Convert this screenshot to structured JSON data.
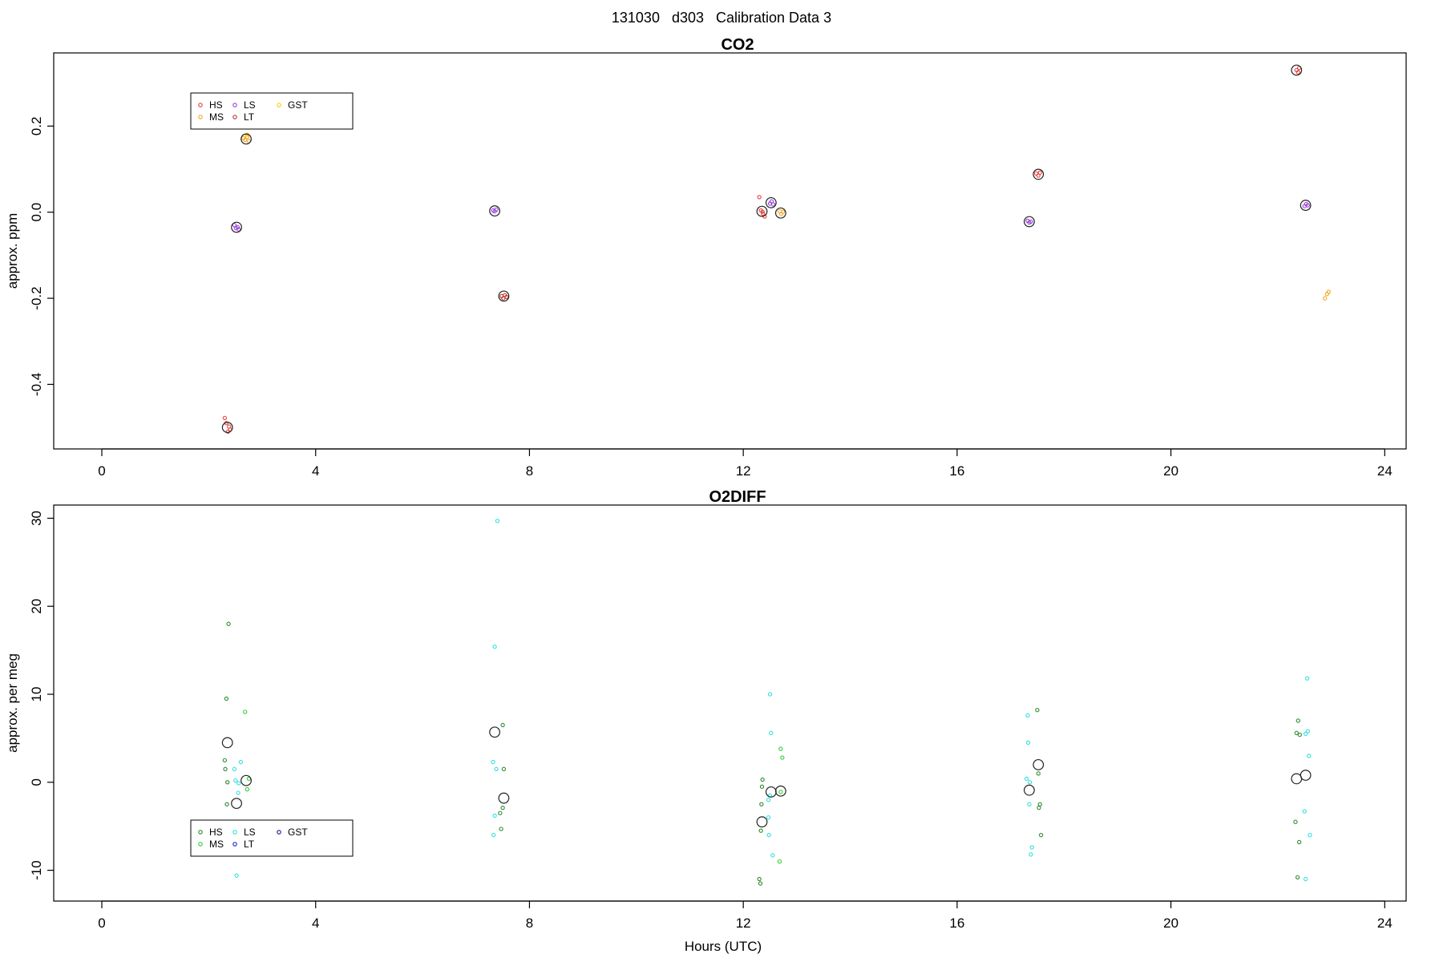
{
  "figure": {
    "title": "131030   d303   Calibration Data 3"
  },
  "chart_data": [
    {
      "type": "scatter",
      "title": "CO2",
      "xlabel": "",
      "ylabel": "approx. ppm",
      "xlim": [
        -0.9,
        24.4
      ],
      "ylim": [
        -0.55,
        0.37
      ],
      "xticks": [
        "0",
        "4",
        "8",
        "12",
        "16",
        "20",
        "24"
      ],
      "yticks": [
        "-0.4",
        "-0.2",
        "0.0",
        "0.2"
      ],
      "legend": {
        "position": "top-left",
        "entries": [
          "HS",
          "MS",
          "LS",
          "LT",
          "GST"
        ]
      },
      "colors": {
        "HS": "#e8413a",
        "MS": "#f5a623",
        "LS": "#9b3fe0",
        "LT": "#c0392b",
        "GST": "#f5d000",
        "mean": "#222222"
      },
      "means": [
        {
          "x": 2.35,
          "y": -0.5
        },
        {
          "x": 2.52,
          "y": -0.035
        },
        {
          "x": 2.7,
          "y": 0.17
        },
        {
          "x": 7.35,
          "y": 0.003
        },
        {
          "x": 7.52,
          "y": -0.195
        },
        {
          "x": 12.35,
          "y": 0.002
        },
        {
          "x": 12.52,
          "y": 0.022
        },
        {
          "x": 12.7,
          "y": -0.002
        },
        {
          "x": 17.35,
          "y": -0.022
        },
        {
          "x": 17.52,
          "y": 0.088
        },
        {
          "x": 22.35,
          "y": 0.33
        },
        {
          "x": 22.52,
          "y": 0.016
        }
      ],
      "series": [
        {
          "name": "HS",
          "points": [
            [
              2.3,
              -0.478
            ],
            [
              2.33,
              -0.49
            ],
            [
              2.36,
              -0.51
            ],
            [
              2.4,
              -0.505
            ],
            [
              2.38,
              -0.498
            ],
            [
              12.3,
              0.035
            ],
            [
              12.33,
              0.004
            ],
            [
              12.37,
              -0.004
            ],
            [
              12.4,
              -0.01
            ],
            [
              12.36,
              0.001
            ],
            [
              17.48,
              0.09
            ],
            [
              17.52,
              0.085
            ],
            [
              17.55,
              0.092
            ],
            [
              22.35,
              0.33
            ],
            [
              22.38,
              0.325
            ],
            [
              22.4,
              0.335
            ]
          ]
        },
        {
          "name": "MS",
          "points": [
            [
              2.65,
              0.172
            ],
            [
              2.68,
              0.168
            ],
            [
              2.72,
              0.175
            ],
            [
              2.75,
              0.165
            ],
            [
              12.68,
              0.002
            ],
            [
              12.71,
              -0.004
            ],
            [
              12.74,
              0.001
            ],
            [
              22.88,
              -0.2
            ],
            [
              22.92,
              -0.19
            ],
            [
              22.95,
              -0.185
            ]
          ]
        },
        {
          "name": "LS",
          "points": [
            [
              2.48,
              -0.03
            ],
            [
              2.51,
              -0.037
            ],
            [
              2.54,
              -0.035
            ],
            [
              2.56,
              -0.04
            ],
            [
              7.32,
              0.004
            ],
            [
              7.35,
              0.002
            ],
            [
              7.38,
              0.006
            ],
            [
              12.5,
              0.02
            ],
            [
              12.53,
              0.025
            ],
            [
              12.56,
              0.018
            ],
            [
              17.32,
              -0.02
            ],
            [
              17.35,
              -0.024
            ],
            [
              17.38,
              -0.022
            ],
            [
              22.5,
              0.014
            ],
            [
              22.53,
              0.019
            ],
            [
              22.56,
              0.016
            ]
          ]
        },
        {
          "name": "LT",
          "points": [
            [
              7.48,
              -0.195
            ],
            [
              7.51,
              -0.2
            ],
            [
              7.54,
              -0.193
            ],
            [
              7.57,
              -0.197
            ]
          ]
        },
        {
          "name": "GST",
          "points": [
            [
              2.72,
              0.18
            ]
          ]
        }
      ]
    },
    {
      "type": "scatter",
      "title": "O2DIFF",
      "xlabel": "Hours (UTC)",
      "ylabel": "approx. per meg",
      "xlim": [
        -0.9,
        24.4
      ],
      "ylim": [
        -13.5,
        31.5
      ],
      "xticks": [
        "0",
        "4",
        "8",
        "12",
        "16",
        "20",
        "24"
      ],
      "yticks": [
        "-10",
        "0",
        "10",
        "20",
        "30"
      ],
      "legend": {
        "position": "bottom-left",
        "entries": [
          "HS",
          "MS",
          "LS",
          "LT",
          "GST"
        ]
      },
      "colors": {
        "HS": "#2e8b2e",
        "MS": "#33cc33",
        "LS": "#33e0e0",
        "LT": "#2020cc",
        "GST": "#1a1a8c",
        "mean": "#222222"
      },
      "means": [
        {
          "x": 2.35,
          "y": 4.5
        },
        {
          "x": 2.52,
          "y": -2.4
        },
        {
          "x": 2.7,
          "y": 0.2
        },
        {
          "x": 7.35,
          "y": 5.7
        },
        {
          "x": 7.52,
          "y": -1.8
        },
        {
          "x": 12.35,
          "y": -4.5
        },
        {
          "x": 12.52,
          "y": -1.1
        },
        {
          "x": 12.7,
          "y": -1.0
        },
        {
          "x": 17.35,
          "y": -0.9
        },
        {
          "x": 17.52,
          "y": 2.0
        },
        {
          "x": 22.35,
          "y": 0.4
        },
        {
          "x": 22.52,
          "y": 0.8
        }
      ],
      "series": [
        {
          "name": "HS",
          "points": [
            [
              2.3,
              2.5
            ],
            [
              2.33,
              9.5
            ],
            [
              2.37,
              18.0
            ],
            [
              2.31,
              1.5
            ],
            [
              2.35,
              0.0
            ],
            [
              2.34,
              -2.5
            ],
            [
              7.5,
              6.5
            ],
            [
              7.52,
              1.5
            ],
            [
              7.45,
              -3.5
            ],
            [
              7.47,
              -5.3
            ],
            [
              7.5,
              -2.9
            ],
            [
              12.3,
              -11.0
            ],
            [
              12.32,
              -11.5
            ],
            [
              12.33,
              -5.5
            ],
            [
              12.35,
              -0.5
            ],
            [
              12.36,
              0.3
            ],
            [
              12.34,
              -2.5
            ],
            [
              17.5,
              8.2
            ],
            [
              17.52,
              1.0
            ],
            [
              17.55,
              -2.5
            ],
            [
              17.57,
              -6.0
            ],
            [
              17.53,
              -2.9
            ],
            [
              22.35,
              5.6
            ],
            [
              22.38,
              7.0
            ],
            [
              22.4,
              -6.8
            ],
            [
              22.37,
              -10.8
            ],
            [
              22.33,
              -4.5
            ],
            [
              22.41,
              5.4
            ]
          ]
        },
        {
          "name": "MS",
          "points": [
            [
              2.68,
              8.0
            ],
            [
              2.72,
              -0.8
            ],
            [
              2.75,
              0.4
            ],
            [
              12.7,
              3.8
            ],
            [
              12.73,
              2.8
            ],
            [
              12.7,
              -1.1
            ],
            [
              12.68,
              -9.0
            ]
          ]
        },
        {
          "name": "LS",
          "points": [
            [
              2.48,
              1.5
            ],
            [
              2.5,
              0.2
            ],
            [
              2.55,
              -1.2
            ],
            [
              2.6,
              2.3
            ],
            [
              2.52,
              -10.6
            ],
            [
              2.56,
              -0.1
            ],
            [
              7.32,
              2.3
            ],
            [
              7.35,
              15.4
            ],
            [
              7.4,
              29.7
            ],
            [
              7.38,
              1.5
            ],
            [
              7.35,
              -3.8
            ],
            [
              7.33,
              -6.0
            ],
            [
              12.5,
              10.0
            ],
            [
              12.52,
              5.6
            ],
            [
              12.5,
              -1.5
            ],
            [
              12.47,
              -4.0
            ],
            [
              12.48,
              -6.0
            ],
            [
              12.55,
              -8.3
            ],
            [
              12.47,
              -2.0
            ],
            [
              17.32,
              7.6
            ],
            [
              17.33,
              4.5
            ],
            [
              17.3,
              0.4
            ],
            [
              17.35,
              -2.5
            ],
            [
              17.38,
              -8.2
            ],
            [
              17.4,
              -7.4
            ],
            [
              17.36,
              0.0
            ],
            [
              22.55,
              11.8
            ],
            [
              22.52,
              5.5
            ],
            [
              22.56,
              5.8
            ],
            [
              22.58,
              3.0
            ],
            [
              22.5,
              -3.3
            ],
            [
              22.6,
              -6.0
            ],
            [
              22.52,
              -11.0
            ]
          ]
        },
        {
          "name": "LT",
          "points": []
        },
        {
          "name": "GST",
          "points": []
        }
      ]
    }
  ]
}
